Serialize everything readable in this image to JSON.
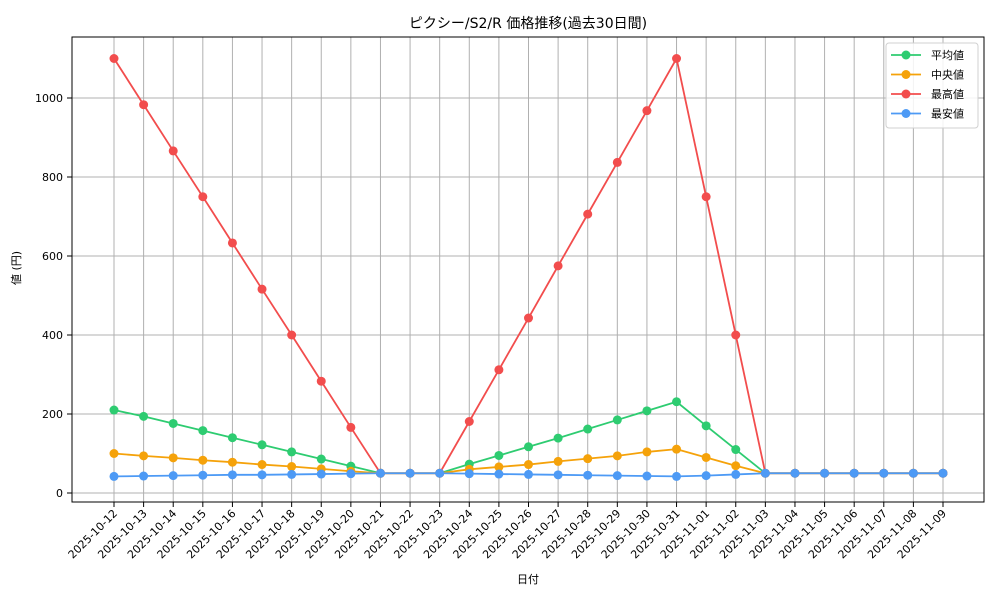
{
  "chart_data": {
    "type": "line",
    "title": "ピクシー/S2/R 価格推移(過去30日間)",
    "xlabel": "日付",
    "ylabel": "値 (円)",
    "ylim": [
      -20,
      1150
    ],
    "yticks": [
      0,
      200,
      400,
      600,
      800,
      1000
    ],
    "grid": true,
    "legend_position": "upper right",
    "categories": [
      "2025-10-12",
      "2025-10-13",
      "2025-10-14",
      "2025-10-15",
      "2025-10-16",
      "2025-10-17",
      "2025-10-18",
      "2025-10-19",
      "2025-10-20",
      "2025-10-21",
      "2025-10-22",
      "2025-10-23",
      "2025-10-24",
      "2025-10-25",
      "2025-10-26",
      "2025-10-27",
      "2025-10-28",
      "2025-10-29",
      "2025-10-30",
      "2025-10-31",
      "2025-11-01",
      "2025-11-02",
      "2025-11-03",
      "2025-11-04",
      "2025-11-05",
      "2025-11-06",
      "2025-11-07",
      "2025-11-08",
      "2025-11-09"
    ],
    "series": [
      {
        "name": "平均値",
        "color": "#2ecc71",
        "values": [
          210,
          194,
          176,
          158,
          140,
          122,
          104,
          86,
          68,
          50,
          50,
          50,
          73,
          95,
          117,
          139,
          162,
          185,
          208,
          231,
          170,
          110,
          50,
          50,
          50,
          50,
          50,
          50,
          50
        ]
      },
      {
        "name": "中央値",
        "color": "#f5a20a",
        "values": [
          100,
          94,
          89,
          83,
          78,
          72,
          67,
          61,
          55,
          50,
          50,
          50,
          60,
          66,
          72,
          80,
          87,
          94,
          104,
          111,
          90,
          69,
          50,
          50,
          50,
          50,
          50,
          50,
          50
        ]
      },
      {
        "name": "最高値",
        "color": "#f24d4d",
        "values": [
          1100,
          983,
          866,
          750,
          633,
          516,
          400,
          283,
          166,
          50,
          50,
          50,
          181,
          312,
          443,
          575,
          706,
          837,
          968,
          1100,
          750,
          400,
          50,
          50,
          50,
          50,
          50,
          50,
          50
        ]
      },
      {
        "name": "最安値",
        "color": "#4d9af5",
        "values": [
          42,
          43,
          44,
          45,
          46,
          46,
          47,
          48,
          49,
          50,
          50,
          50,
          49,
          48,
          47,
          46,
          45,
          44,
          43,
          42,
          44,
          47,
          50,
          50,
          50,
          50,
          50,
          50,
          50
        ]
      }
    ]
  }
}
